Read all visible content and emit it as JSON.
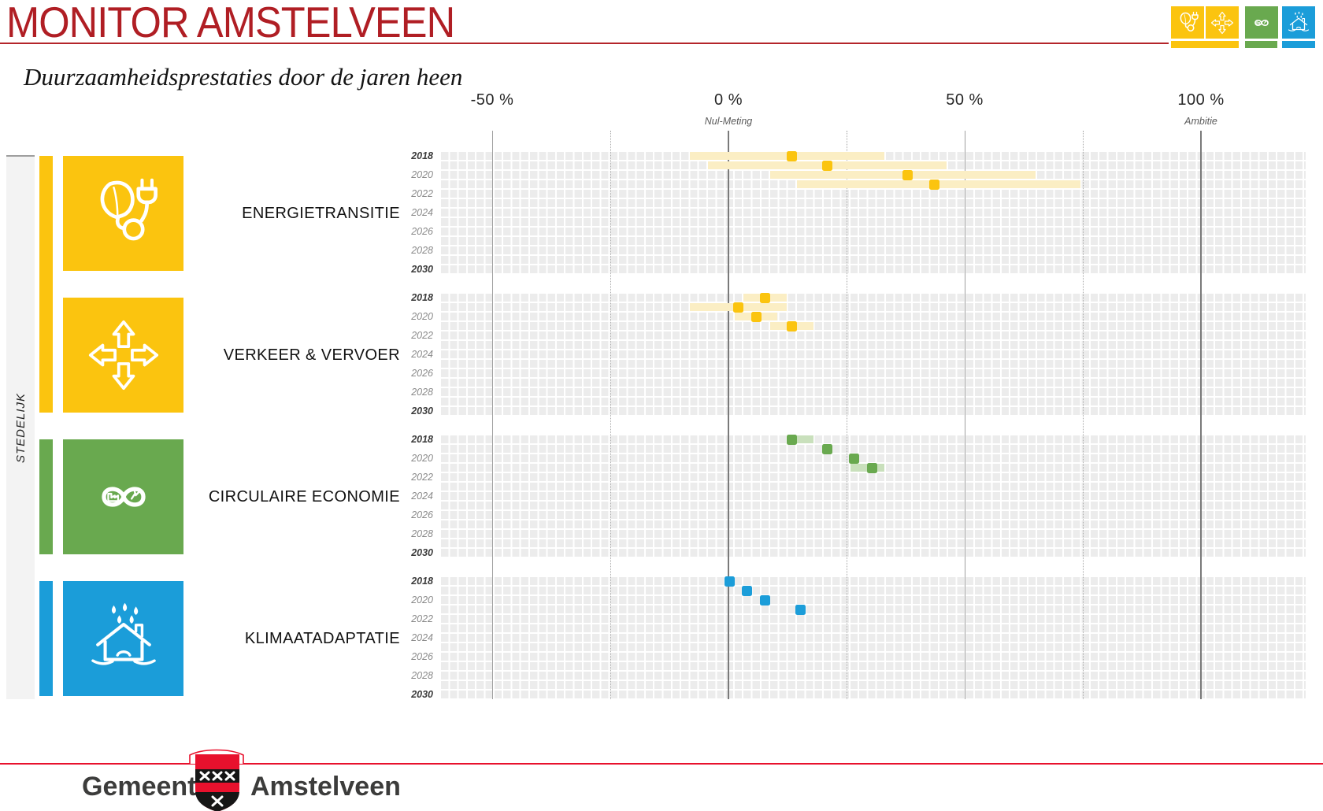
{
  "header": {
    "title": "MONITOR AMSTELVEEN",
    "subtitle": "Duurzaamheidsprestaties door de jaren heen"
  },
  "sidebar": {
    "group_label": "STEDELIJK"
  },
  "axis": {
    "ticks": [
      {
        "pct": -50,
        "label": "-50 %",
        "sublabel": ""
      },
      {
        "pct": 0,
        "label": "0 %",
        "sublabel": "Nul-Meting"
      },
      {
        "pct": 50,
        "label": "50 %",
        "sublabel": ""
      },
      {
        "pct": 100,
        "label": "100 %",
        "sublabel": "Ambitie"
      }
    ],
    "gridlines": [
      {
        "pct": -50,
        "style": "minor"
      },
      {
        "pct": -25,
        "style": "dotted"
      },
      {
        "pct": 0,
        "style": "major"
      },
      {
        "pct": 25,
        "style": "dotted"
      },
      {
        "pct": 50,
        "style": "minor"
      },
      {
        "pct": 75,
        "style": "dotted"
      },
      {
        "pct": 100,
        "style": "major"
      }
    ]
  },
  "years_labeled": [
    2018,
    2020,
    2022,
    2024,
    2026,
    2028,
    2030
  ],
  "colors": {
    "accent_red": "#B01E24",
    "footer_red": "#E8112D",
    "grid_gray": "#ECECEC",
    "yellow": "#FBC40F",
    "yellow_light": "#FBEEC4",
    "green": "#69A94F",
    "green_light": "#C9E0BC",
    "blue": "#1B9DD9"
  },
  "chart_data": {
    "type": "scatter",
    "x_unit": "percent progress vs Nul-Meting (0%) toward Ambitie (100%)",
    "x_range": [
      -60,
      122
    ],
    "year_rows": [
      2018,
      2030
    ],
    "sections": [
      {
        "name": "ENERGIETRANSITIE",
        "icon": "energy-leaf-plug-icon",
        "color": "#FBC40F",
        "light": "#FBEEC4",
        "points": [
          {
            "year": 2018,
            "value": 14,
            "range": [
              -7,
              33
            ]
          },
          {
            "year": 2019,
            "value": 20,
            "range": [
              -4,
              45
            ]
          },
          {
            "year": 2020,
            "value": 38,
            "range": [
              9,
              65
            ]
          },
          {
            "year": 2021,
            "value": 44,
            "range": [
              15,
              73
            ]
          }
        ]
      },
      {
        "name": "VERKEER & VERVOER",
        "icon": "four-arrows-icon",
        "color": "#FBC40F",
        "light": "#FBEEC4",
        "points": [
          {
            "year": 2018,
            "value": 8,
            "range": [
              4,
              11
            ]
          },
          {
            "year": 2019,
            "value": 2,
            "range": [
              -7,
              11
            ]
          },
          {
            "year": 2020,
            "value": 6,
            "range": [
              2,
              10
            ]
          },
          {
            "year": 2021,
            "value": 14,
            "range": [
              10,
              18
            ]
          }
        ]
      },
      {
        "name": "CIRCULAIRE ECONOMIE",
        "icon": "circular-infinity-icon",
        "color": "#69A94F",
        "light": "#C9E0BC",
        "points": [
          {
            "year": 2018,
            "value": 14,
            "range": [
              14,
              17
            ]
          },
          {
            "year": 2019,
            "value": 20,
            "range": null
          },
          {
            "year": 2020,
            "value": 26,
            "range": null
          },
          {
            "year": 2021,
            "value": 30,
            "range": [
              27,
              33
            ]
          }
        ]
      },
      {
        "name": "KLIMAATADAPTATIE",
        "icon": "house-rain-icon",
        "color": "#1B9DD9",
        "light": "#BFE2F2",
        "points": [
          {
            "year": 2018,
            "value": 0,
            "range": null
          },
          {
            "year": 2019,
            "value": 4,
            "range": null
          },
          {
            "year": 2020,
            "value": 8,
            "range": null
          },
          {
            "year": 2021,
            "value": 16,
            "range": null
          }
        ]
      }
    ]
  },
  "footer": {
    "org_prefix": "Gemeente",
    "org_name": "Amstelveen"
  }
}
